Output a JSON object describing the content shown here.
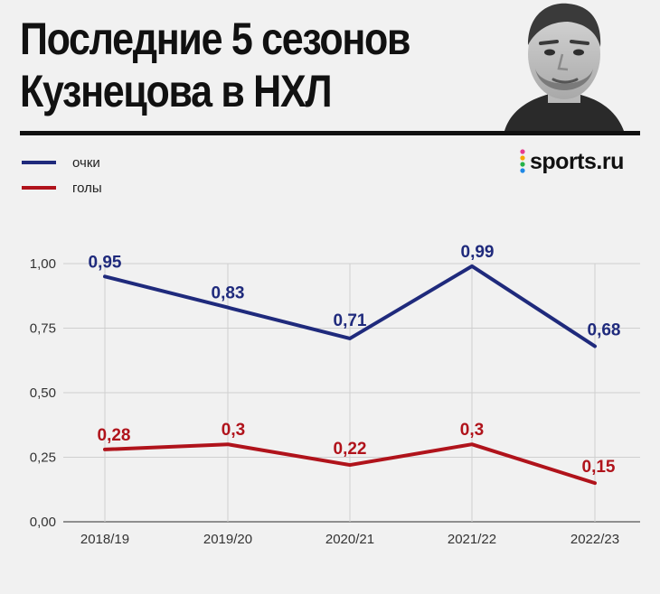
{
  "title_lines": [
    "Последние 5 сезонов",
    "Кузнецова в НХЛ"
  ],
  "brand": "sports.ru",
  "colors": {
    "points": "#1f2a7c",
    "goals": "#b0131b",
    "grid": "#cfcfcf",
    "text": "#111111"
  },
  "legend": [
    {
      "label": "очки",
      "color": "#1f2a7c"
    },
    {
      "label": "голы",
      "color": "#b0131b"
    }
  ],
  "chart_data": {
    "type": "line",
    "title": "Последние 5 сезонов Кузнецова в НХЛ",
    "categories": [
      "2018/19",
      "2019/20",
      "2020/21",
      "2021/22",
      "2022/23"
    ],
    "series": [
      {
        "name": "очки",
        "values": [
          0.95,
          0.83,
          0.71,
          0.99,
          0.68
        ],
        "labels": [
          "0,95",
          "0,83",
          "0,71",
          "0,99",
          "0,68"
        ],
        "color": "#1f2a7c"
      },
      {
        "name": "голы",
        "values": [
          0.28,
          0.3,
          0.22,
          0.3,
          0.15
        ],
        "labels": [
          "0,28",
          "0,3",
          "0,22",
          "0,3",
          "0,15"
        ],
        "color": "#b0131b"
      }
    ],
    "yticks": [
      0,
      0.25,
      0.5,
      0.75,
      1.0
    ],
    "ytick_labels": [
      "0,00",
      "0,25",
      "0,50",
      "0,75",
      "1,00"
    ],
    "ylim": [
      0,
      1.0
    ],
    "grid": true,
    "legend_position": "top-left"
  }
}
